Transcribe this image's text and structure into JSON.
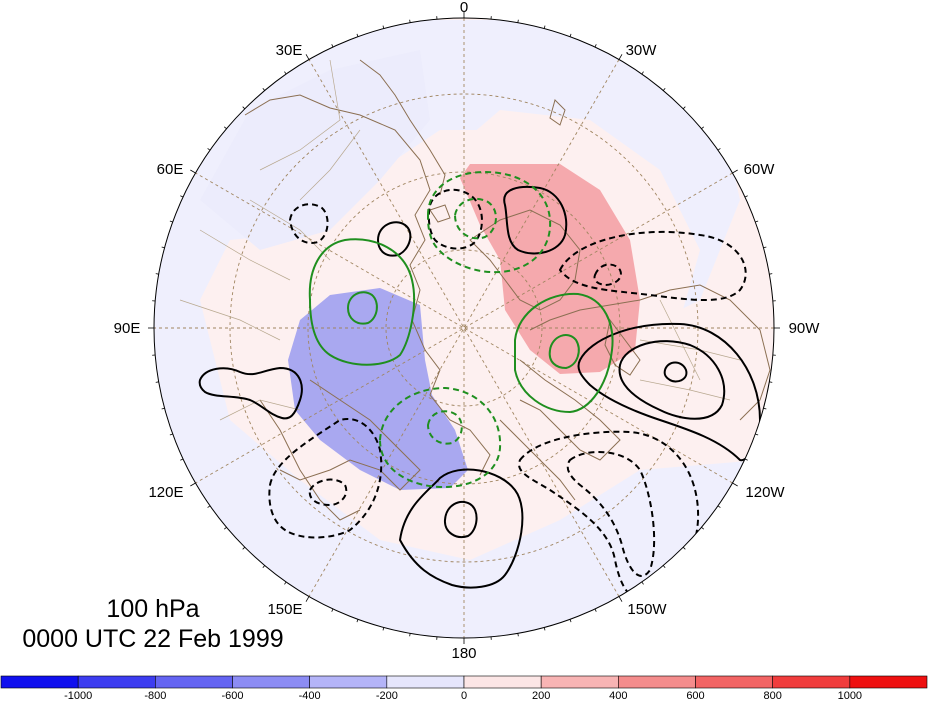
{
  "map": {
    "projection": "north-polar-stereographic",
    "longitude_labels": [
      "0",
      "30W",
      "60W",
      "90W",
      "120W",
      "150W",
      "180",
      "150E",
      "120E",
      "90E",
      "60E",
      "30E"
    ],
    "level_label": "100 hPa",
    "time_label": "0000 UTC 22 Feb 1999",
    "colors": {
      "land_outline": "#8b6f52",
      "grid": "#a08560",
      "positive_contour": "#000000",
      "green_contour": "#1f8f1f",
      "positive_fill": "#f4a8ac",
      "negative_fill": "#a9a8f0"
    }
  },
  "colorbar": {
    "tick_labels": [
      "-1000",
      "-800",
      "-600",
      "-400",
      "-200",
      "0",
      "200",
      "400",
      "600",
      "800",
      "1000"
    ],
    "colors": [
      "#1010ee",
      "#3c3cf0",
      "#6464f2",
      "#8c8cf4",
      "#b4b4f8",
      "#e6e6fc",
      "#fce6e6",
      "#f8b4b4",
      "#f48c8c",
      "#f26464",
      "#f03c3c",
      "#ee1010"
    ]
  }
}
